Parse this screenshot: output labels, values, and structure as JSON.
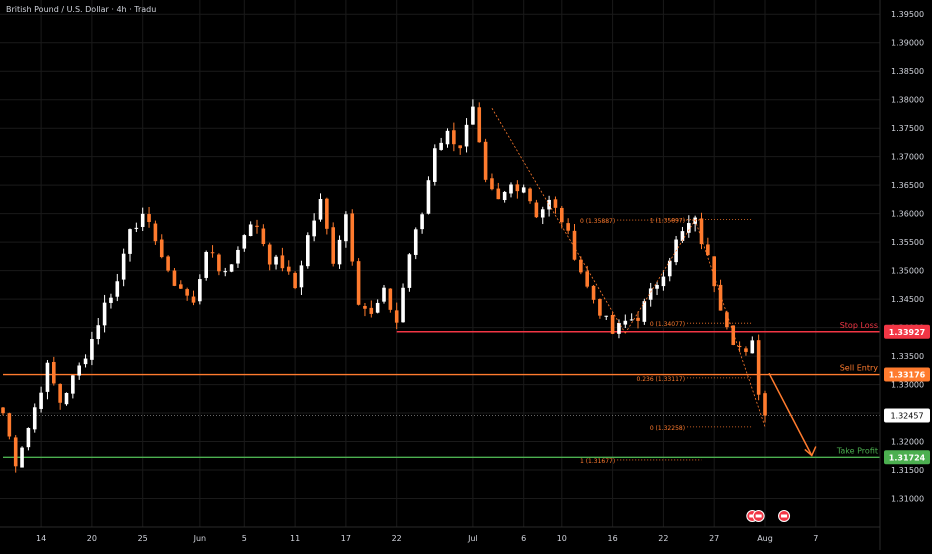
{
  "chart_data": {
    "type": "candlestick",
    "title": "British Pound / U.S. Dollar · 4h · Tradu",
    "y_range": [
      1.305,
      1.3975
    ],
    "y_ticks": [
      "1.39500",
      "1.39000",
      "1.38500",
      "1.38000",
      "1.37500",
      "1.37000",
      "1.36500",
      "1.36000",
      "1.35500",
      "1.35000",
      "1.34500",
      "1.34000",
      "1.33500",
      "1.33000",
      "1.32500",
      "1.32000",
      "1.31500",
      "1.31000"
    ],
    "x_ticks": [
      {
        "label": "14",
        "bar": 6
      },
      {
        "label": "20",
        "bar": 14
      },
      {
        "label": "25",
        "bar": 22
      },
      {
        "label": "Jun",
        "bar": 31
      },
      {
        "label": "5",
        "bar": 38
      },
      {
        "label": "11",
        "bar": 46
      },
      {
        "label": "17",
        "bar": 54
      },
      {
        "label": "22",
        "bar": 62
      },
      {
        "label": "Jul",
        "bar": 74
      },
      {
        "label": "6",
        "bar": 82
      },
      {
        "label": "10",
        "bar": 88
      },
      {
        "label": "16",
        "bar": 96
      },
      {
        "label": "22",
        "bar": 104
      },
      {
        "label": "27",
        "bar": 112
      },
      {
        "label": "Aug",
        "bar": 120
      },
      {
        "label": "7",
        "bar": 128
      }
    ],
    "bar_count": 138,
    "candle_anchors": [
      [
        0,
        1.325
      ],
      [
        2,
        1.3165
      ],
      [
        4,
        1.3225
      ],
      [
        7,
        1.333
      ],
      [
        9,
        1.327
      ],
      [
        12,
        1.333
      ],
      [
        14,
        1.338
      ],
      [
        16,
        1.344
      ],
      [
        18,
        1.348
      ],
      [
        20,
        1.358
      ],
      [
        22,
        1.359
      ],
      [
        24,
        1.356
      ],
      [
        26,
        1.349
      ],
      [
        28,
        1.347
      ],
      [
        30,
        1.344
      ],
      [
        32,
        1.354
      ],
      [
        34,
        1.35
      ],
      [
        36,
        1.351
      ],
      [
        38,
        1.357
      ],
      [
        40,
        1.358
      ],
      [
        42,
        1.352
      ],
      [
        44,
        1.351
      ],
      [
        46,
        1.347
      ],
      [
        48,
        1.356
      ],
      [
        50,
        1.362
      ],
      [
        52,
        1.352
      ],
      [
        54,
        1.36
      ],
      [
        56,
        1.345
      ],
      [
        58,
        1.342
      ],
      [
        60,
        1.346
      ],
      [
        62,
        1.341
      ],
      [
        64,
        1.353
      ],
      [
        66,
        1.36
      ],
      [
        68,
        1.372
      ],
      [
        70,
        1.374
      ],
      [
        72,
        1.372
      ],
      [
        74,
        1.378
      ],
      [
        76,
        1.365
      ],
      [
        78,
        1.362
      ],
      [
        80,
        1.365
      ],
      [
        82,
        1.365
      ],
      [
        84,
        1.36
      ],
      [
        86,
        1.362
      ],
      [
        88,
        1.359
      ],
      [
        90,
        1.353
      ],
      [
        92,
        1.347
      ],
      [
        94,
        1.343
      ],
      [
        96,
        1.339
      ],
      [
        98,
        1.341
      ],
      [
        100,
        1.342
      ],
      [
        102,
        1.346
      ],
      [
        104,
        1.35
      ],
      [
        106,
        1.355
      ],
      [
        108,
        1.358
      ],
      [
        109,
        1.3585
      ],
      [
        111,
        1.352
      ],
      [
        113,
        1.344
      ],
      [
        115,
        1.338
      ],
      [
        117,
        1.335
      ],
      [
        118,
        1.337
      ],
      [
        119,
        1.329
      ],
      [
        120,
        1.3245
      ]
    ],
    "current_price": "1.32457",
    "levels": [
      {
        "name": "Stop Loss",
        "price": 1.33927,
        "price_label": "1.33927",
        "color": "#f23645",
        "start_bar": 62
      },
      {
        "name": "Sell Entry",
        "price": 1.33176,
        "price_label": "1.33176",
        "color": "#ff7b2e",
        "start_bar": 0
      },
      {
        "name": "Take Profit",
        "price": 1.31724,
        "price_label": "1.31724",
        "color": "#4caf50",
        "start_bar": 0
      }
    ],
    "fib_levels": [
      {
        "label": "0 (1.35887)",
        "price": 1.35887,
        "start_bar": 92,
        "end_bar": 110
      },
      {
        "label": "1 (1.35897)",
        "price": 1.35897,
        "start_bar": 103,
        "end_bar": 118
      },
      {
        "label": "0 (1.34077)",
        "price": 1.34077,
        "start_bar": 103,
        "end_bar": 118
      },
      {
        "label": "0.236 (1.33117)",
        "price": 1.33117,
        "start_bar": 103,
        "end_bar": 118
      },
      {
        "label": "0 (1.32258)",
        "price": 1.32258,
        "start_bar": 103,
        "end_bar": 118
      },
      {
        "label": "1 (1.31677)",
        "price": 1.31677,
        "start_bar": 92,
        "end_bar": 110
      }
    ],
    "event_icon_bars": [
      118,
      119,
      123
    ],
    "colors": {
      "up": "#ffffff",
      "down": "#ff7b2e",
      "grid": "#1a1a1a",
      "axis_text": "#d1d4dc",
      "fib": "#ff7b2e",
      "current_price_line": "#888888",
      "arrow": "#ff7b2e"
    }
  }
}
